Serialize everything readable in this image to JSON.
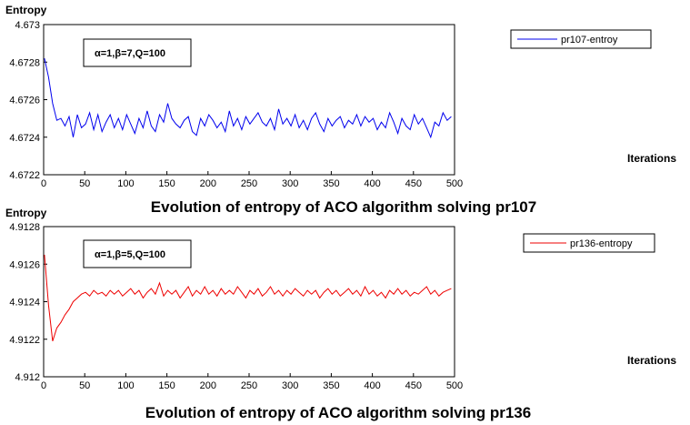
{
  "chart_data": [
    {
      "type": "line",
      "ylabel": "Entropy",
      "xlabel": "Iterations",
      "caption": "Evolution of entropy of ACO algorithm solving pr107",
      "annotation": "α=1,β=7,Q=100",
      "xlim": [
        0,
        500
      ],
      "ylim": [
        4.6722,
        4.673
      ],
      "x_ticks": [
        "0",
        "50",
        "100",
        "150",
        "200",
        "250",
        "300",
        "350",
        "400",
        "450",
        "500"
      ],
      "y_ticks": [
        "4.6722",
        "4.6724",
        "4.6726",
        "4.6728",
        "4.673"
      ],
      "legend_position": "top-right",
      "grid": false,
      "color": "#0000ee",
      "series": [
        {
          "name": "pr107-entroy",
          "x_start": 1,
          "x_step": 5,
          "values": [
            4.67282,
            4.67272,
            4.67258,
            4.67249,
            4.6725,
            4.67246,
            4.67251,
            4.6724,
            4.67252,
            4.67245,
            4.67247,
            4.67253,
            4.67244,
            4.67252,
            4.67243,
            4.67248,
            4.67252,
            4.67245,
            4.6725,
            4.67244,
            4.67252,
            4.67247,
            4.67242,
            4.6725,
            4.67245,
            4.67254,
            4.67246,
            4.67243,
            4.67252,
            4.67248,
            4.67258,
            4.6725,
            4.67247,
            4.67245,
            4.67249,
            4.67251,
            4.67243,
            4.67241,
            4.6725,
            4.67246,
            4.67252,
            4.67249,
            4.67245,
            4.67248,
            4.67243,
            4.67254,
            4.67246,
            4.6725,
            4.67244,
            4.67251,
            4.67247,
            4.6725,
            4.67253,
            4.67248,
            4.67246,
            4.6725,
            4.67244,
            4.67255,
            4.67247,
            4.6725,
            4.67246,
            4.67252,
            4.67245,
            4.67249,
            4.67244,
            4.6725,
            4.67253,
            4.67247,
            4.67243,
            4.6725,
            4.67246,
            4.67249,
            4.67251,
            4.67245,
            4.67249,
            4.67247,
            4.67252,
            4.67246,
            4.67251,
            4.67248,
            4.6725,
            4.67244,
            4.67248,
            4.67245,
            4.67253,
            4.67248,
            4.67242,
            4.6725,
            4.67246,
            4.67244,
            4.67252,
            4.67247,
            4.6725,
            4.67245,
            4.6724,
            4.67248,
            4.67246,
            4.67253,
            4.67249,
            4.67251
          ]
        }
      ]
    },
    {
      "type": "line",
      "ylabel": "Entropy",
      "xlabel": "Iterations",
      "caption": "Evolution of entropy of ACO algorithm solving pr136",
      "annotation": "α=1,β=5,Q=100",
      "xlim": [
        0,
        500
      ],
      "ylim": [
        4.912,
        4.9128
      ],
      "x_ticks": [
        "0",
        "50",
        "100",
        "150",
        "200",
        "250",
        "300",
        "350",
        "400",
        "450",
        "500"
      ],
      "y_ticks": [
        "4.912",
        "4.9122",
        "4.9124",
        "4.9126",
        "4.9128"
      ],
      "legend_position": "top-right",
      "grid": false,
      "color": "#ee0000",
      "series": [
        {
          "name": "pr136-entropy",
          "x_start": 1,
          "x_step": 5,
          "values": [
            4.91265,
            4.91238,
            4.91219,
            4.91226,
            4.91229,
            4.91233,
            4.91236,
            4.9124,
            4.91242,
            4.91244,
            4.91245,
            4.91243,
            4.91246,
            4.91244,
            4.91245,
            4.91243,
            4.91246,
            4.91244,
            4.91246,
            4.91243,
            4.91245,
            4.91247,
            4.91244,
            4.91246,
            4.91242,
            4.91245,
            4.91247,
            4.91244,
            4.9125,
            4.91243,
            4.91246,
            4.91244,
            4.91246,
            4.91242,
            4.91245,
            4.91248,
            4.91243,
            4.91246,
            4.91244,
            4.91248,
            4.91244,
            4.91246,
            4.91243,
            4.91247,
            4.91244,
            4.91246,
            4.91244,
            4.91248,
            4.91245,
            4.91242,
            4.91246,
            4.91244,
            4.91247,
            4.91243,
            4.91245,
            4.91248,
            4.91244,
            4.91246,
            4.91243,
            4.91246,
            4.91244,
            4.91247,
            4.91245,
            4.91243,
            4.91246,
            4.91244,
            4.91246,
            4.91242,
            4.91245,
            4.91247,
            4.91244,
            4.91246,
            4.91243,
            4.91245,
            4.91247,
            4.91244,
            4.91246,
            4.91243,
            4.91248,
            4.91244,
            4.91246,
            4.91243,
            4.91245,
            4.91242,
            4.91246,
            4.91244,
            4.91247,
            4.91244,
            4.91246,
            4.91243,
            4.91245,
            4.91244,
            4.91246,
            4.91248,
            4.91244,
            4.91246,
            4.91243,
            4.91245,
            4.91246,
            4.91247
          ]
        }
      ]
    }
  ]
}
